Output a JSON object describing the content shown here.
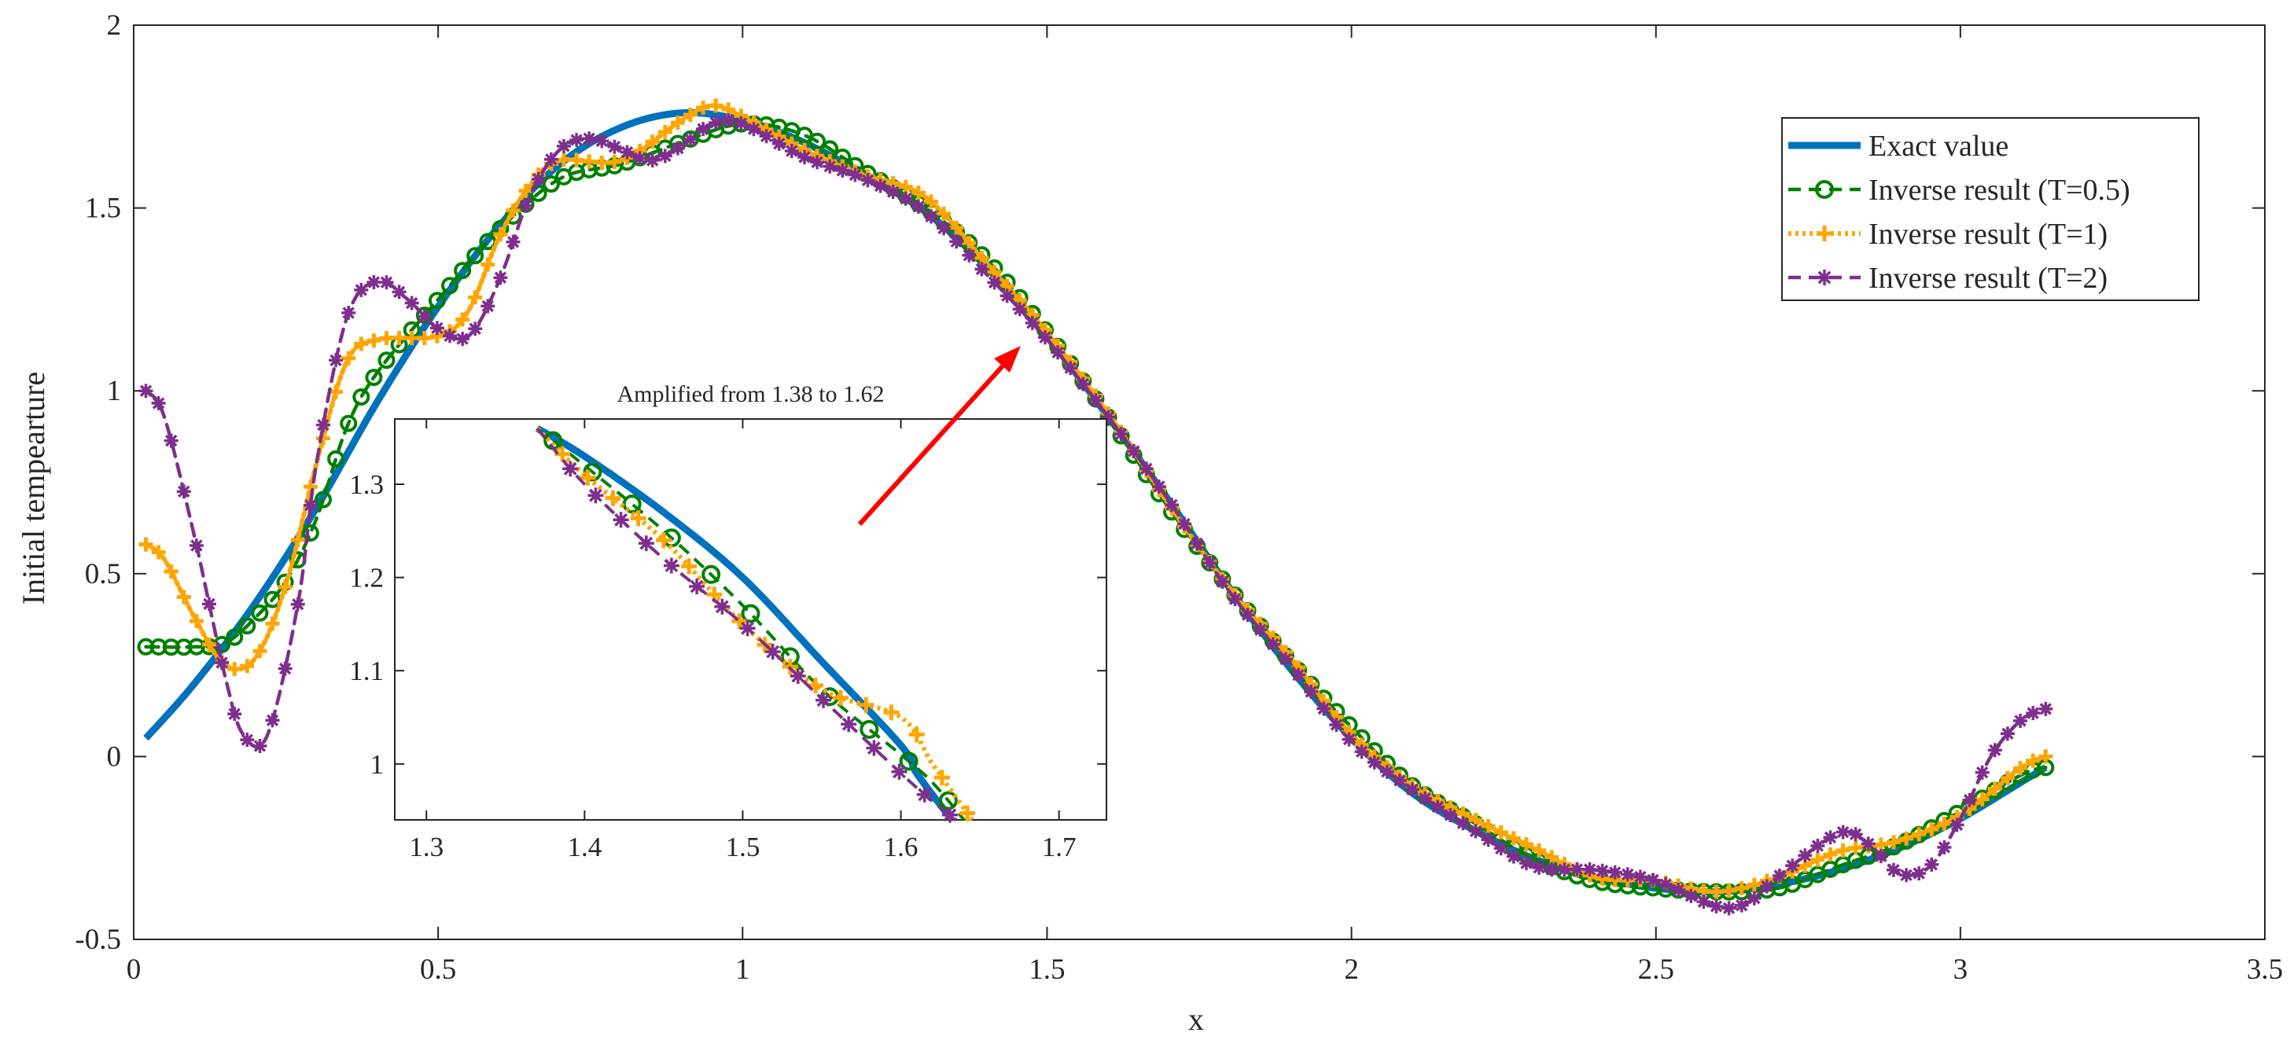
{
  "chart_data": [
    {
      "id": "main",
      "type": "line",
      "xlabel": "x",
      "ylabel": "Initial tempearture",
      "xlim": [
        0,
        3.5
      ],
      "ylim": [
        -0.5,
        2
      ],
      "xticks": [
        "0",
        "0.5",
        "1",
        "1.5",
        "2",
        "2.5",
        "3",
        "3.5"
      ],
      "yticks": [
        "-0.5",
        "0",
        "0.5",
        "1",
        "1.5",
        "2"
      ],
      "legend": {
        "position": "top-right",
        "entries": [
          "Exact value",
          "Inverse result (T=0.5)",
          "Inverse result (T=1)",
          "Inverse result (T=2)"
        ]
      },
      "series": [
        {
          "name": "Exact value",
          "color": "#0072BD",
          "style": "solid",
          "marker": "none",
          "points": [
            [
              0.02,
              0.05
            ],
            [
              0.1,
              0.2
            ],
            [
              0.2,
              0.42
            ],
            [
              0.3,
              0.68
            ],
            [
              0.4,
              0.97
            ],
            [
              0.5,
              1.23
            ],
            [
              0.6,
              1.45
            ],
            [
              0.7,
              1.62
            ],
            [
              0.8,
              1.72
            ],
            [
              0.9,
              1.76
            ],
            [
              1.0,
              1.74
            ],
            [
              1.1,
              1.68
            ],
            [
              1.2,
              1.59
            ],
            [
              1.3,
              1.49
            ],
            [
              1.4,
              1.34
            ],
            [
              1.5,
              1.15
            ],
            [
              1.6,
              0.93
            ],
            [
              1.7,
              0.7
            ],
            [
              1.8,
              0.46
            ],
            [
              1.9,
              0.24
            ],
            [
              2.0,
              0.05
            ],
            [
              2.1,
              -0.1
            ],
            [
              2.2,
              -0.2
            ],
            [
              2.3,
              -0.28
            ],
            [
              2.4,
              -0.33
            ],
            [
              2.5,
              -0.36
            ],
            [
              2.6,
              -0.37
            ],
            [
              2.7,
              -0.35
            ],
            [
              2.8,
              -0.31
            ],
            [
              2.9,
              -0.25
            ],
            [
              3.0,
              -0.17
            ],
            [
              3.1,
              -0.07
            ],
            [
              3.14,
              -0.03
            ]
          ]
        },
        {
          "name": "Inverse result (T=0.5)",
          "color": "#008000",
          "style": "dash",
          "marker": "circle",
          "points": [
            [
              0.02,
              0.3
            ],
            [
              0.1,
              0.3
            ],
            [
              0.15,
              0.31
            ],
            [
              0.2,
              0.38
            ],
            [
              0.25,
              0.48
            ],
            [
              0.3,
              0.65
            ],
            [
              0.35,
              0.9
            ],
            [
              0.4,
              1.05
            ],
            [
              0.5,
              1.25
            ],
            [
              0.6,
              1.44
            ],
            [
              0.7,
              1.58
            ],
            [
              0.8,
              1.62
            ],
            [
              0.9,
              1.68
            ],
            [
              1.0,
              1.73
            ],
            [
              1.1,
              1.7
            ],
            [
              1.2,
              1.6
            ],
            [
              1.3,
              1.5
            ],
            [
              1.4,
              1.36
            ],
            [
              1.5,
              1.16
            ],
            [
              1.6,
              0.93
            ],
            [
              1.7,
              0.68
            ],
            [
              1.8,
              0.46
            ],
            [
              1.9,
              0.26
            ],
            [
              2.0,
              0.08
            ],
            [
              2.1,
              -0.08
            ],
            [
              2.2,
              -0.18
            ],
            [
              2.3,
              -0.28
            ],
            [
              2.4,
              -0.34
            ],
            [
              2.5,
              -0.36
            ],
            [
              2.6,
              -0.37
            ],
            [
              2.7,
              -0.36
            ],
            [
              2.8,
              -0.3
            ],
            [
              2.9,
              -0.24
            ],
            [
              3.0,
              -0.15
            ],
            [
              3.1,
              -0.05
            ],
            [
              3.14,
              -0.03
            ]
          ]
        },
        {
          "name": "Inverse result (T=1)",
          "color": "#FFA500",
          "style": "dot",
          "marker": "plus",
          "points": [
            [
              0.02,
              0.58
            ],
            [
              0.05,
              0.54
            ],
            [
              0.1,
              0.38
            ],
            [
              0.15,
              0.25
            ],
            [
              0.2,
              0.27
            ],
            [
              0.25,
              0.47
            ],
            [
              0.3,
              0.8
            ],
            [
              0.35,
              1.08
            ],
            [
              0.4,
              1.14
            ],
            [
              0.5,
              1.15
            ],
            [
              0.55,
              1.22
            ],
            [
              0.6,
              1.42
            ],
            [
              0.65,
              1.56
            ],
            [
              0.7,
              1.63
            ],
            [
              0.8,
              1.63
            ],
            [
              0.9,
              1.74
            ],
            [
              0.95,
              1.78
            ],
            [
              1.0,
              1.75
            ],
            [
              1.1,
              1.66
            ],
            [
              1.2,
              1.59
            ],
            [
              1.3,
              1.53
            ],
            [
              1.4,
              1.35
            ],
            [
              1.5,
              1.16
            ],
            [
              1.6,
              0.94
            ],
            [
              1.7,
              0.69
            ],
            [
              1.8,
              0.46
            ],
            [
              1.9,
              0.27
            ],
            [
              2.0,
              0.06
            ],
            [
              2.1,
              -0.08
            ],
            [
              2.2,
              -0.17
            ],
            [
              2.3,
              -0.25
            ],
            [
              2.4,
              -0.33
            ],
            [
              2.5,
              -0.34
            ],
            [
              2.6,
              -0.37
            ],
            [
              2.7,
              -0.33
            ],
            [
              2.8,
              -0.26
            ],
            [
              2.9,
              -0.23
            ],
            [
              3.0,
              -0.16
            ],
            [
              3.1,
              -0.03
            ],
            [
              3.14,
              0.0
            ]
          ]
        },
        {
          "name": "Inverse result (T=2)",
          "color": "#7E2F8E",
          "style": "dash",
          "marker": "star",
          "points": [
            [
              0.02,
              1.0
            ],
            [
              0.05,
              0.93
            ],
            [
              0.1,
              0.6
            ],
            [
              0.15,
              0.22
            ],
            [
              0.18,
              0.06
            ],
            [
              0.22,
              0.06
            ],
            [
              0.27,
              0.42
            ],
            [
              0.3,
              0.8
            ],
            [
              0.35,
              1.2
            ],
            [
              0.4,
              1.3
            ],
            [
              0.45,
              1.25
            ],
            [
              0.5,
              1.17
            ],
            [
              0.55,
              1.15
            ],
            [
              0.6,
              1.3
            ],
            [
              0.65,
              1.53
            ],
            [
              0.7,
              1.66
            ],
            [
              0.75,
              1.69
            ],
            [
              0.8,
              1.66
            ],
            [
              0.85,
              1.63
            ],
            [
              0.9,
              1.67
            ],
            [
              0.95,
              1.73
            ],
            [
              1.0,
              1.73
            ],
            [
              1.1,
              1.64
            ],
            [
              1.2,
              1.58
            ],
            [
              1.3,
              1.49
            ],
            [
              1.4,
              1.32
            ],
            [
              1.5,
              1.14
            ],
            [
              1.6,
              0.93
            ],
            [
              1.7,
              0.7
            ],
            [
              1.8,
              0.45
            ],
            [
              1.9,
              0.25
            ],
            [
              2.0,
              0.04
            ],
            [
              2.1,
              -0.09
            ],
            [
              2.2,
              -0.2
            ],
            [
              2.3,
              -0.3
            ],
            [
              2.4,
              -0.31
            ],
            [
              2.5,
              -0.34
            ],
            [
              2.6,
              -0.41
            ],
            [
              2.65,
              -0.4
            ],
            [
              2.7,
              -0.33
            ],
            [
              2.8,
              -0.21
            ],
            [
              2.85,
              -0.24
            ],
            [
              2.9,
              -0.32
            ],
            [
              2.95,
              -0.3
            ],
            [
              3.0,
              -0.17
            ],
            [
              3.05,
              0.0
            ],
            [
              3.1,
              0.1
            ],
            [
              3.14,
              0.13
            ]
          ]
        }
      ]
    },
    {
      "id": "inset",
      "type": "line",
      "title": "Amplified from 1.38 to 1.62",
      "xlim": [
        1.28,
        1.73
      ],
      "ylim": [
        0.94,
        1.37
      ],
      "xticks": [
        "1.3",
        "1.4",
        "1.5",
        "1.6",
        "1.7"
      ],
      "yticks": [
        "1",
        "1.1",
        "1.2",
        "1.3"
      ],
      "series": [
        {
          "name": "Exact value",
          "points": [
            [
              1.37,
              1.36
            ],
            [
              1.4,
              1.33
            ],
            [
              1.45,
              1.27
            ],
            [
              1.5,
              1.2
            ],
            [
              1.55,
              1.11
            ],
            [
              1.6,
              1.02
            ],
            [
              1.61,
              0.99
            ],
            [
              1.63,
              0.945
            ]
          ]
        },
        {
          "name": "Inverse result (T=0.5)",
          "points": [
            [
              1.37,
              1.36
            ],
            [
              1.4,
              1.32
            ],
            [
              1.45,
              1.25
            ],
            [
              1.5,
              1.17
            ],
            [
              1.55,
              1.08
            ],
            [
              1.6,
              1.01
            ],
            [
              1.62,
              0.98
            ],
            [
              1.64,
              0.94
            ]
          ]
        },
        {
          "name": "Inverse result (T=1)",
          "points": [
            [
              1.37,
              1.36
            ],
            [
              1.4,
              1.31
            ],
            [
              1.45,
              1.24
            ],
            [
              1.5,
              1.15
            ],
            [
              1.55,
              1.08
            ],
            [
              1.6,
              1.05
            ],
            [
              1.62,
              1.0
            ],
            [
              1.645,
              0.94
            ]
          ]
        },
        {
          "name": "Inverse result (T=2)",
          "points": [
            [
              1.37,
              1.36
            ],
            [
              1.4,
              1.3
            ],
            [
              1.45,
              1.22
            ],
            [
              1.5,
              1.15
            ],
            [
              1.55,
              1.07
            ],
            [
              1.6,
              0.99
            ],
            [
              1.62,
              0.96
            ],
            [
              1.635,
              0.94
            ]
          ]
        }
      ]
    }
  ]
}
